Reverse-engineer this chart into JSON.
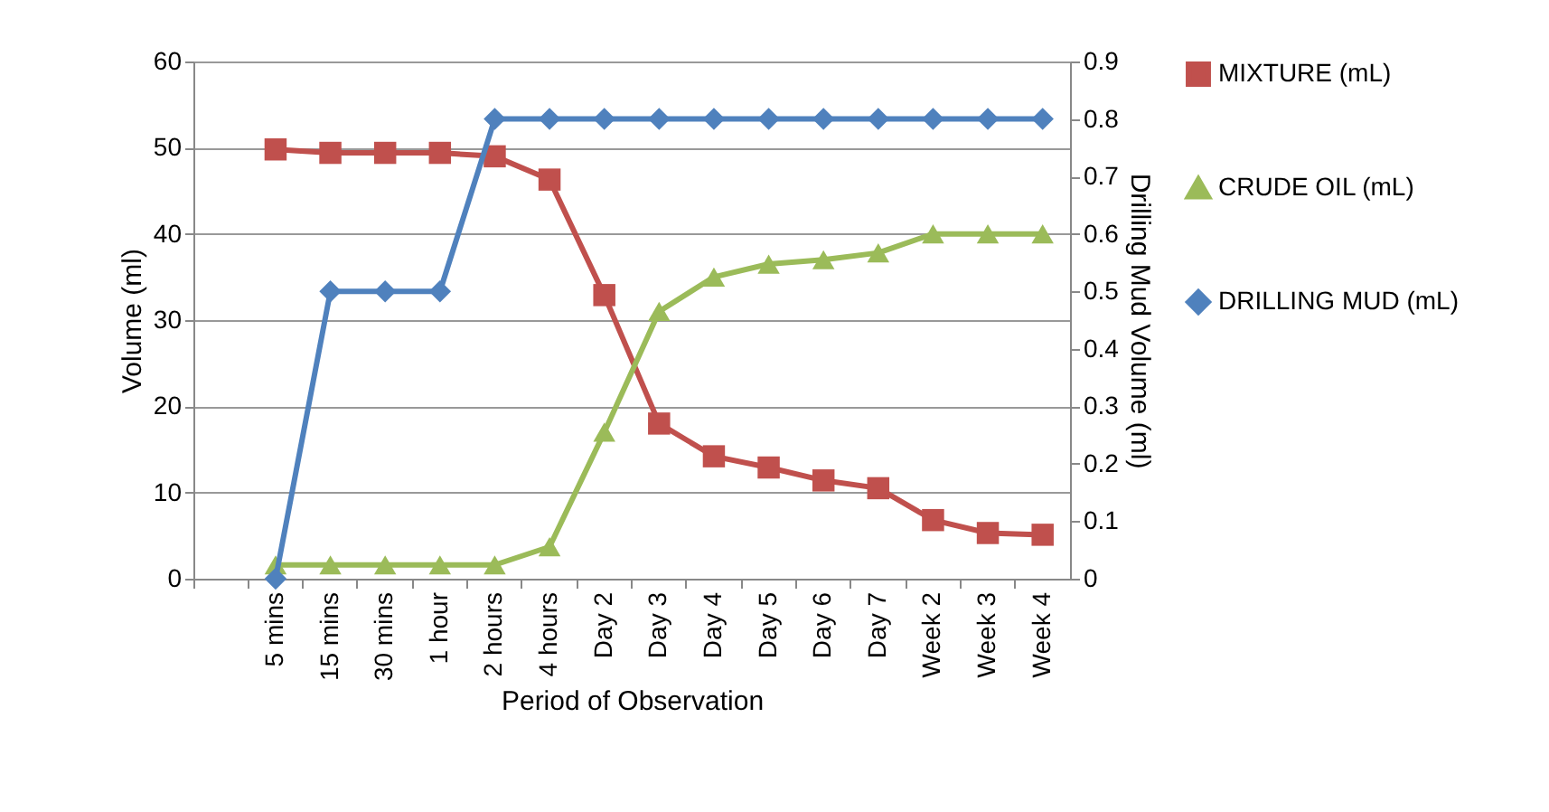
{
  "chart_data": {
    "type": "line",
    "xlabel": "Period of Observation",
    "ylabel": "Volume (ml)",
    "y2label": "Drilling Mud Volume (ml)",
    "categories": [
      null,
      "5 mins",
      "15 mins",
      "30 mins",
      "1 hour",
      "2 hours",
      "4 hours",
      "Day 2",
      "Day 3",
      "Day 4",
      "Day 5",
      "Day 6",
      "Day 7",
      "Week 2",
      "Week 3",
      "Week 4"
    ],
    "ylim": [
      0,
      60
    ],
    "yticks": [
      0,
      10,
      20,
      30,
      40,
      50,
      60
    ],
    "y2lim": [
      0,
      0.9
    ],
    "y2ticks": [
      0,
      0.1,
      0.2,
      0.3,
      0.4,
      0.5,
      0.6,
      0.7,
      0.8,
      0.9
    ],
    "grid": "y",
    "legend": "right",
    "series": [
      {
        "name": "MIXTURE (mL)",
        "color": "#c0504d",
        "marker": "square",
        "values": [
          null,
          49.8,
          49.4,
          49.4,
          49.4,
          49,
          46.3,
          32.9,
          18,
          14.2,
          12.9,
          11.4,
          10.5,
          6.8,
          5.3,
          5.1
        ]
      },
      {
        "name": "CRUDE OIL (mL)",
        "color": "#9bbb59",
        "marker": "triangle",
        "values": [
          null,
          1.6,
          1.6,
          1.6,
          1.6,
          1.6,
          3.7,
          17,
          31,
          35,
          36.5,
          37,
          37.8,
          40,
          40,
          40
        ]
      },
      {
        "name": "DRILLING MUD (mL)",
        "color": "#4f81bd",
        "marker": "diamond",
        "axis": "y2",
        "values": [
          null,
          0,
          0.5,
          0.5,
          0.5,
          0.8,
          0.8,
          0.8,
          0.8,
          0.8,
          0.8,
          0.8,
          0.8,
          0.8,
          0.8,
          0.8
        ]
      }
    ]
  }
}
